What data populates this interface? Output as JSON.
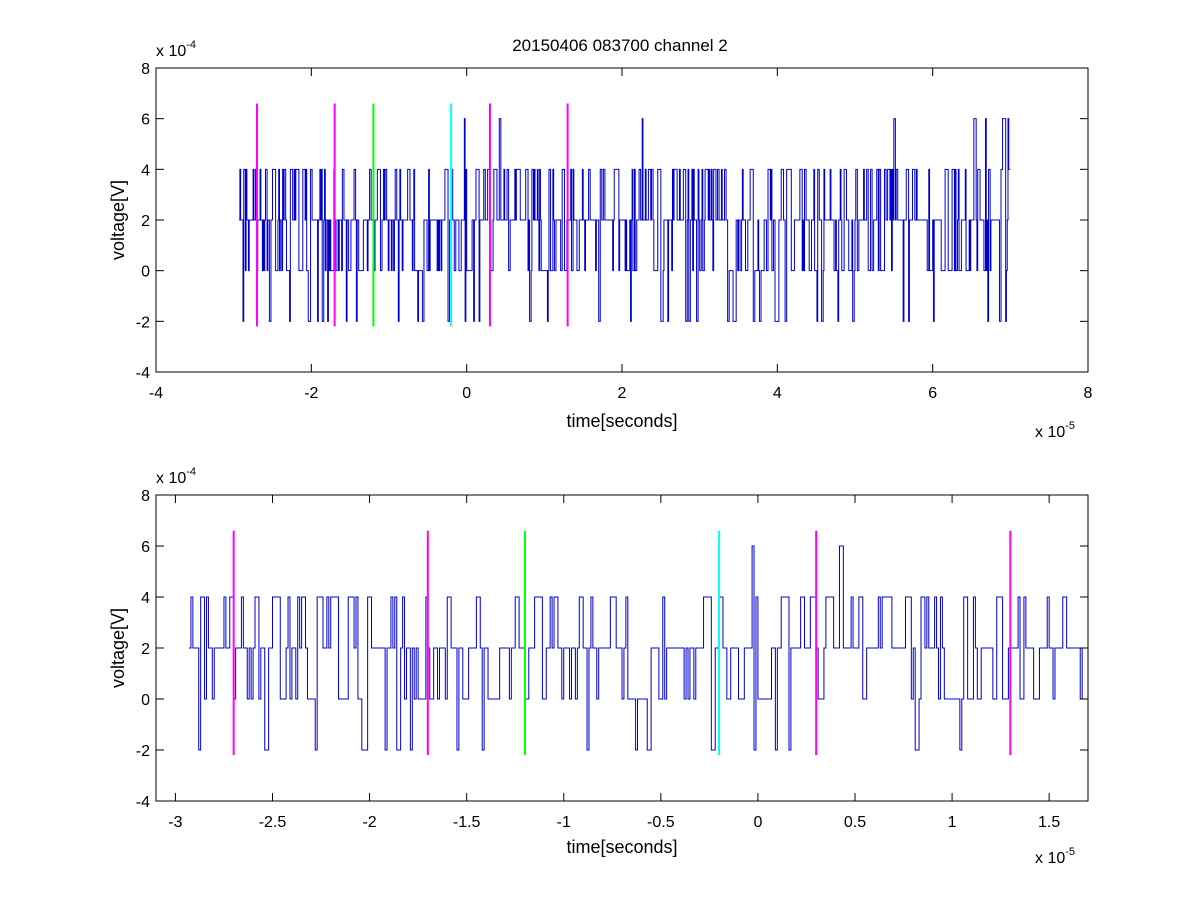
{
  "figure": {
    "title": "20150406 083700 channel 2",
    "background": "#ffffff",
    "signal_color": "#0000cc",
    "marker_colors": {
      "magenta": "#ff00ff",
      "green": "#00ff00",
      "cyan": "#00ffff"
    }
  },
  "chart_data": [
    {
      "type": "line",
      "title": "20150406 083700 channel 2",
      "xlabel": "time[seconds]",
      "ylabel": "voltage[V]",
      "xlim": [
        -4e-05,
        8e-05
      ],
      "ylim": [
        -0.0004,
        0.0008
      ],
      "xticks": [
        -4e-05,
        -2e-05,
        0,
        2e-05,
        4e-05,
        6e-05,
        8e-05
      ],
      "xtick_labels": [
        "-4",
        "-2",
        "0",
        "2",
        "4",
        "6",
        "8"
      ],
      "yticks": [
        -0.0004,
        -0.0002,
        0,
        0.0002,
        0.0004,
        0.0006,
        0.0008
      ],
      "ytick_labels": [
        "-4",
        "-2",
        "0",
        "2",
        "4",
        "6",
        "8"
      ],
      "x_exponent": {
        "base": "x 10",
        "power": "-5"
      },
      "y_exponent": {
        "base": "x 10",
        "power": "-4"
      },
      "grid": false,
      "signal": {
        "x_start": -2.93e-05,
        "x_end": 7e-05,
        "levels": [
          -0.0002,
          0,
          0.0002,
          0.0004,
          0.0006
        ],
        "baseline": 0.0002
      },
      "markers": [
        {
          "x": -2.7e-05,
          "color": "#ff00ff",
          "y_range": [
            -0.00022,
            0.00066
          ]
        },
        {
          "x": -1.7e-05,
          "color": "#ff00ff",
          "y_range": [
            -0.00022,
            0.00066
          ]
        },
        {
          "x": -1.2e-05,
          "color": "#00ff00",
          "y_range": [
            -0.00022,
            0.00066
          ]
        },
        {
          "x": -2e-06,
          "color": "#00ffff",
          "y_range": [
            -0.00022,
            0.00066
          ]
        },
        {
          "x": 3e-06,
          "color": "#ff00ff",
          "y_range": [
            -0.00022,
            0.00066
          ]
        },
        {
          "x": 1.3e-05,
          "color": "#ff00ff",
          "y_range": [
            -0.00022,
            0.00066
          ]
        }
      ]
    },
    {
      "type": "line",
      "title": "",
      "xlabel": "time[seconds]",
      "ylabel": "voltage[V]",
      "xlim": [
        -3.1e-05,
        1.7e-05
      ],
      "ylim": [
        -0.0004,
        0.0008
      ],
      "xticks": [
        -3e-05,
        -2.5e-05,
        -2e-05,
        -1.5e-05,
        -1e-05,
        -5e-06,
        0,
        5e-06,
        1e-05,
        1.5e-05
      ],
      "xtick_labels": [
        "-3",
        "-2.5",
        "-2",
        "-1.5",
        "-1",
        "-0.5",
        "0",
        "0.5",
        "1",
        "1.5"
      ],
      "yticks": [
        -0.0004,
        -0.0002,
        0,
        0.0002,
        0.0004,
        0.0006,
        0.0008
      ],
      "ytick_labels": [
        "-4",
        "-2",
        "0",
        "2",
        "4",
        "6",
        "8"
      ],
      "x_exponent": {
        "base": "x 10",
        "power": "-5"
      },
      "y_exponent": {
        "base": "x 10",
        "power": "-4"
      },
      "grid": false,
      "signal": {
        "x_start": -2.93e-05,
        "x_end": 1.7e-05,
        "levels": [
          -0.0002,
          0,
          0.0002,
          0.0004,
          0.0006
        ],
        "baseline": 0.0002
      },
      "markers": [
        {
          "x": -2.7e-05,
          "color": "#ff00ff",
          "y_range": [
            -0.00022,
            0.00066
          ]
        },
        {
          "x": -1.7e-05,
          "color": "#ff00ff",
          "y_range": [
            -0.00022,
            0.00066
          ]
        },
        {
          "x": -1.2e-05,
          "color": "#00ff00",
          "y_range": [
            -0.00022,
            0.00066
          ]
        },
        {
          "x": -2e-06,
          "color": "#00ffff",
          "y_range": [
            -0.00022,
            0.00066
          ]
        },
        {
          "x": 3e-06,
          "color": "#ff00ff",
          "y_range": [
            -0.00022,
            0.00066
          ]
        },
        {
          "x": 1.3e-05,
          "color": "#ff00ff",
          "y_range": [
            -0.00022,
            0.00066
          ]
        }
      ]
    }
  ]
}
